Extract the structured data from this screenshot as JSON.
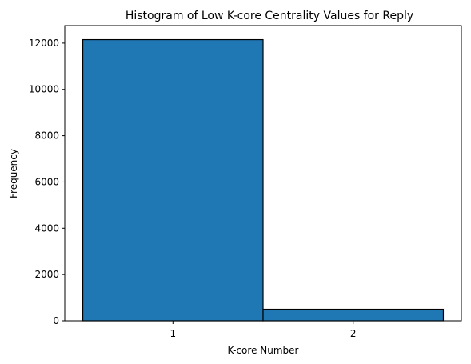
{
  "chart_data": {
    "type": "bar",
    "title": "Histogram of Low K-core Centrality Values for Reply",
    "xlabel": "K-core Number",
    "ylabel": "Frequency",
    "categories": [
      "1",
      "2"
    ],
    "values": [
      12150,
      500
    ],
    "xlim": [
      0.4,
      2.6
    ],
    "ylim": [
      0,
      12757
    ],
    "yticks": [
      0,
      2000,
      4000,
      6000,
      8000,
      10000,
      12000
    ],
    "xticks": [
      1,
      2
    ],
    "bar_color": "#1f77b4",
    "edge_color": "#000000",
    "grid": false,
    "legend": "none"
  }
}
